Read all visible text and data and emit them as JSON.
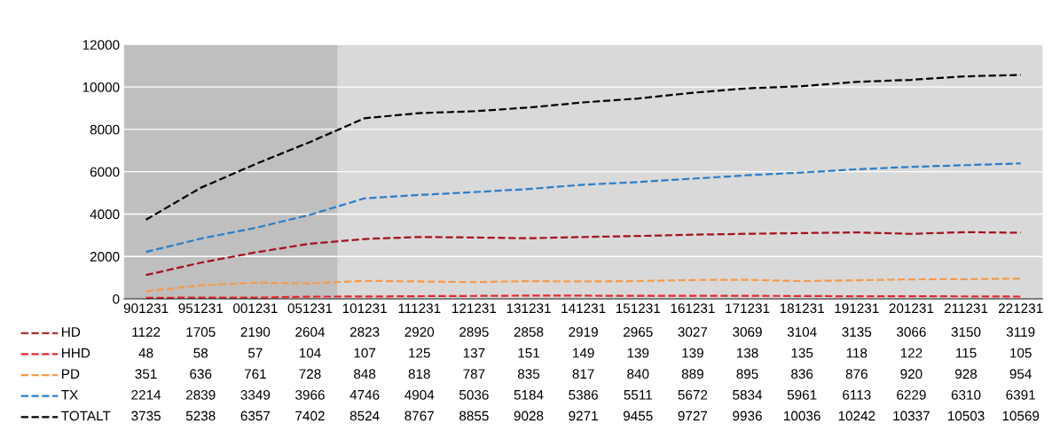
{
  "chart_data": {
    "type": "line",
    "categories": [
      "901231",
      "951231",
      "001231",
      "051231",
      "101231",
      "111231",
      "121231",
      "131231",
      "141231",
      "151231",
      "161231",
      "171231",
      "181231",
      "191231",
      "201231",
      "211231",
      "221231"
    ],
    "series": [
      {
        "name": "HD",
        "color": "#a6111b",
        "values": [
          1122,
          1705,
          2190,
          2604,
          2823,
          2920,
          2895,
          2858,
          2919,
          2965,
          3027,
          3069,
          3104,
          3135,
          3066,
          3150,
          3119
        ]
      },
      {
        "name": "HHD",
        "color": "#e8262b",
        "values": [
          48,
          58,
          57,
          104,
          107,
          125,
          137,
          151,
          149,
          139,
          139,
          138,
          135,
          118,
          122,
          115,
          105
        ]
      },
      {
        "name": "PD",
        "color": "#f59a4a",
        "values": [
          351,
          636,
          761,
          728,
          848,
          818,
          787,
          835,
          817,
          840,
          889,
          895,
          836,
          876,
          920,
          928,
          954
        ]
      },
      {
        "name": "TX",
        "color": "#2a7fc9",
        "values": [
          2214,
          2839,
          3349,
          3966,
          4746,
          4904,
          5036,
          5184,
          5386,
          5511,
          5672,
          5834,
          5961,
          6113,
          6229,
          6310,
          6391
        ]
      },
      {
        "name": "TOTALT",
        "color": "#000000",
        "values": [
          3735,
          5238,
          6357,
          7402,
          8524,
          8767,
          8855,
          9028,
          9271,
          9455,
          9727,
          9936,
          10036,
          10242,
          10337,
          10503,
          10569
        ]
      }
    ],
    "ylim": [
      0,
      12000
    ],
    "yticks": [
      0,
      2000,
      4000,
      6000,
      8000,
      10000,
      12000
    ],
    "grid": "y",
    "line_style": "dashed",
    "marker": "none",
    "legend": "bottom left",
    "data_labels": true,
    "bands": [
      {
        "axis": "x",
        "from": "901231",
        "to": "051231",
        "color": "#bfbfbf"
      }
    ]
  }
}
